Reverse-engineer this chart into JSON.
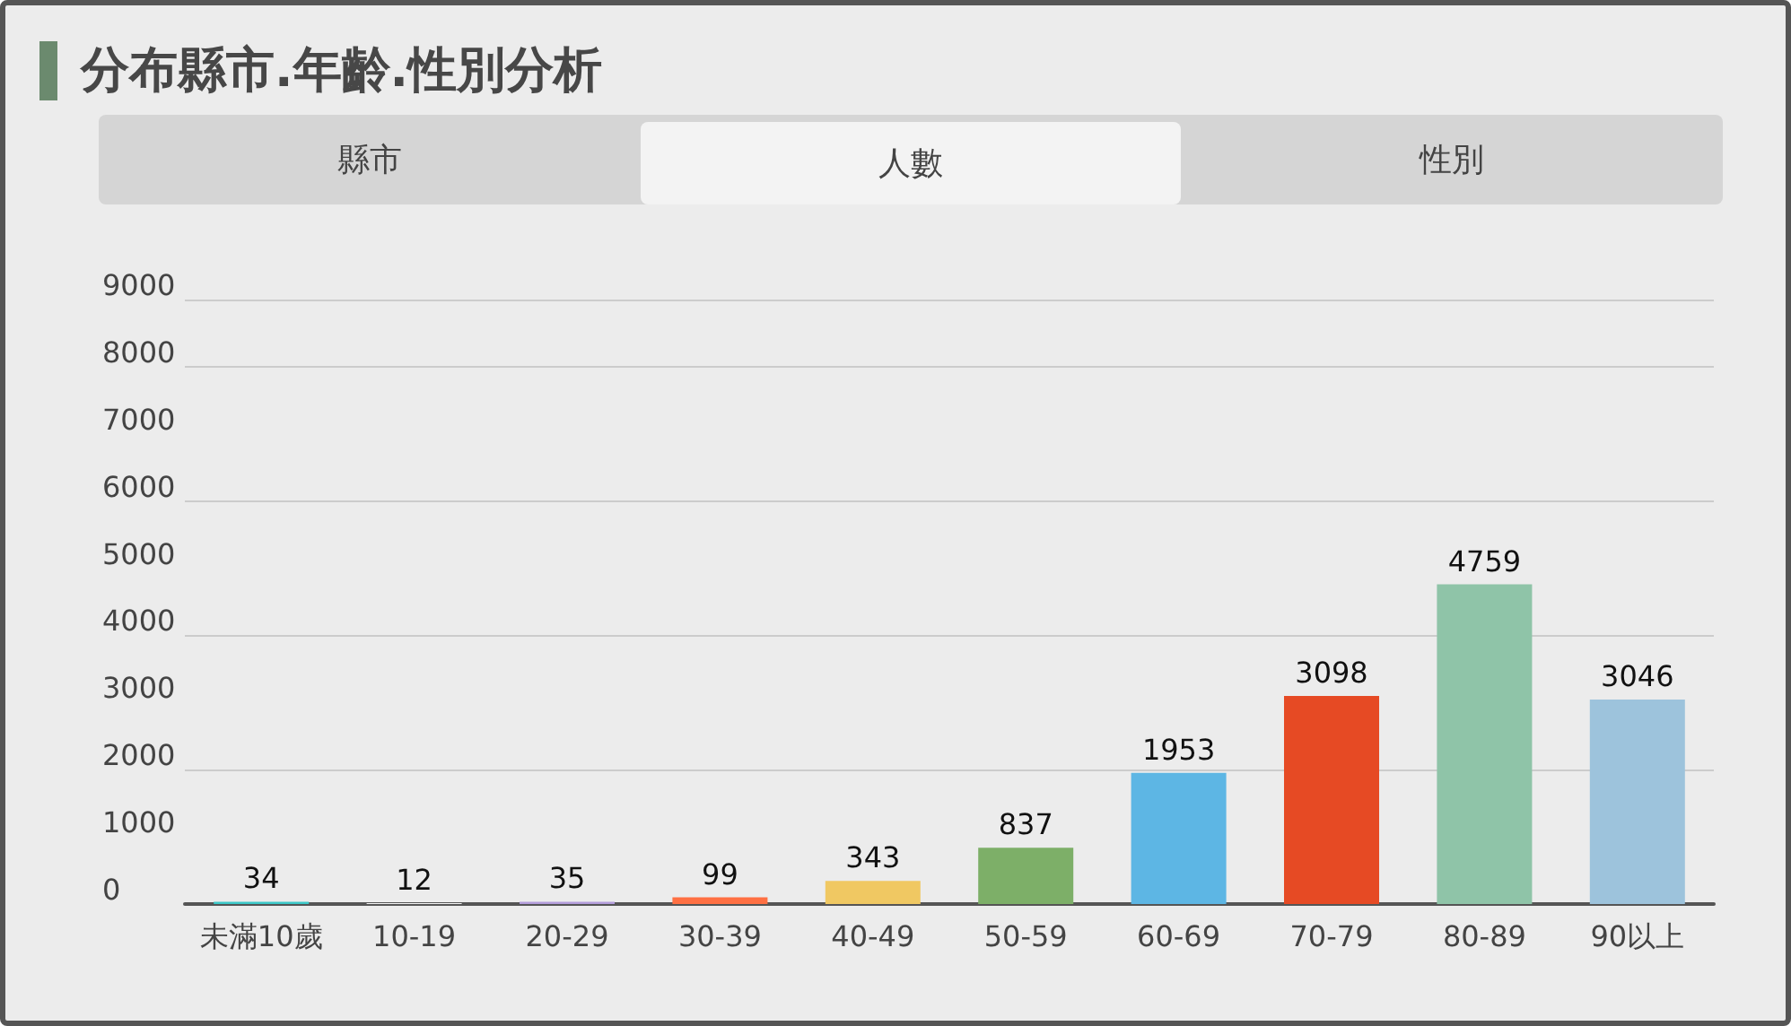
{
  "chart_data": {
    "type": "bar",
    "title": "分布縣市.年齡.性別分析",
    "annotations": [
      "縣市",
      "人數",
      "性別"
    ],
    "categories": [
      "未滿10歲",
      "10-19",
      "20-29",
      "30-39",
      "40-49",
      "50-59",
      "60-69",
      "70-79",
      "80-89",
      "90以上"
    ],
    "values": [
      34,
      12,
      35,
      99,
      343,
      837,
      1953,
      3098,
      4759,
      3046
    ],
    "colors": [
      "#3cc8c8",
      "#f5f5f5",
      "#b39ddb",
      "#ff7043",
      "#f0c862",
      "#7daf68",
      "#5db6e4",
      "#e64a24",
      "#8fc4a8",
      "#9dc3dc"
    ],
    "ylim": [
      0,
      9000
    ],
    "yticks": [
      0,
      1000,
      2000,
      3000,
      4000,
      5000,
      6000,
      7000,
      8000,
      9000
    ],
    "grid": "y",
    "data_labels": true
  }
}
